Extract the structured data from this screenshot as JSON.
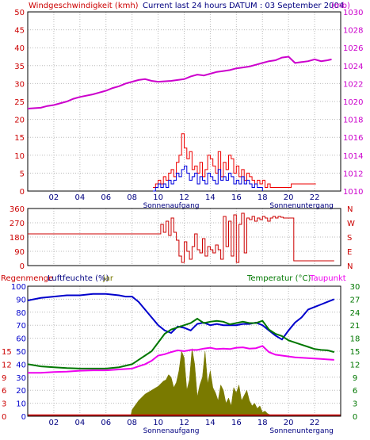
{
  "chart_data": [
    {
      "type": "line",
      "header": {
        "left_label": "Windgeschwindigkeit (kmh)",
        "center_label": "Current last 24 hours :",
        "date_label": "DATUM : 03 September 2004",
        "right_label": "(mb)"
      },
      "xlim": [
        0,
        24
      ],
      "x_ticks": [
        "02",
        "04",
        "06",
        "08",
        "10",
        "12",
        "14",
        "16",
        "18",
        "20",
        "22"
      ],
      "x_tick_values": [
        2,
        4,
        6,
        8,
        10,
        12,
        14,
        16,
        18,
        20,
        22
      ],
      "sun_labels": {
        "sunrise": "Sonnenaufgang",
        "sunset": "Sonnenuntergang",
        "sunrise_x": 11.0,
        "sunset_x": 21.0
      },
      "y_left": {
        "ticks": [
          0,
          5,
          10,
          15,
          20,
          25,
          30,
          35,
          40,
          45,
          50
        ],
        "lim": [
          0,
          50
        ],
        "color": "#cc0000"
      },
      "y_right": {
        "ticks": [
          1010,
          1012,
          1014,
          1016,
          1018,
          1020,
          1022,
          1024,
          1026,
          1028,
          1030
        ],
        "lim": [
          1010,
          1030
        ],
        "color": "#cc00cc"
      },
      "series": [
        {
          "role": "pressure",
          "color": "#cc00cc",
          "axis": "right",
          "x": [
            0,
            1,
            1.5,
            2,
            3,
            3.5,
            4,
            5,
            5.5,
            6,
            6.5,
            7,
            7.5,
            8,
            8.5,
            9,
            9.5,
            10,
            11,
            12,
            12.5,
            13,
            13.5,
            14,
            14.5,
            15,
            15.5,
            16,
            16.5,
            17,
            17.5,
            18,
            18.5,
            19,
            19.5,
            20,
            20.5,
            21,
            21.5,
            22,
            22.5,
            23,
            23.3
          ],
          "y": [
            1019.2,
            1019.3,
            1019.5,
            1019.6,
            1020.0,
            1020.3,
            1020.5,
            1020.8,
            1021.0,
            1021.2,
            1021.5,
            1021.7,
            1022.0,
            1022.2,
            1022.4,
            1022.5,
            1022.3,
            1022.2,
            1022.3,
            1022.5,
            1022.8,
            1023.0,
            1022.9,
            1023.1,
            1023.3,
            1023.4,
            1023.5,
            1023.7,
            1023.8,
            1023.9,
            1024.1,
            1024.3,
            1024.5,
            1024.6,
            1024.9,
            1025.0,
            1024.3,
            1024.4,
            1024.5,
            1024.7,
            1024.5,
            1024.6,
            1024.7
          ]
        },
        {
          "role": "wind_gust",
          "color": "#ee0000",
          "axis": "left",
          "x": [
            9.6,
            9.8,
            10.0,
            10.2,
            10.4,
            10.6,
            10.8,
            11.0,
            11.2,
            11.4,
            11.6,
            11.8,
            12.0,
            12.2,
            12.4,
            12.6,
            12.8,
            13.0,
            13.2,
            13.4,
            13.6,
            13.8,
            14.0,
            14.2,
            14.4,
            14.6,
            14.8,
            15.0,
            15.2,
            15.4,
            15.6,
            15.8,
            16.0,
            16.2,
            16.4,
            16.6,
            16.8,
            17.0,
            17.2,
            17.4,
            17.6,
            17.8,
            18.0,
            18.2,
            18.4,
            18.6,
            20.2,
            22.1
          ],
          "y": [
            1,
            2,
            3,
            2,
            4,
            3,
            5,
            6,
            4,
            8,
            10,
            16,
            12,
            9,
            11,
            6,
            7,
            5,
            8,
            4,
            6,
            10,
            9,
            7,
            5,
            11,
            4,
            8,
            6,
            10,
            9,
            5,
            7,
            4,
            6,
            3,
            5,
            4,
            3,
            2,
            3,
            2,
            3,
            1,
            2,
            1,
            2,
            2
          ]
        },
        {
          "role": "wind_mean",
          "color": "#0000dd",
          "axis": "left",
          "x": [
            9.6,
            9.8,
            10.0,
            10.2,
            10.4,
            10.6,
            10.8,
            11.0,
            11.2,
            11.4,
            11.6,
            11.8,
            12.0,
            12.2,
            12.4,
            12.6,
            12.8,
            13.0,
            13.2,
            13.4,
            13.6,
            13.8,
            14.0,
            14.2,
            14.4,
            14.6,
            14.8,
            15.0,
            15.2,
            15.4,
            15.6,
            15.8,
            16.0,
            16.2,
            16.4,
            16.6,
            16.8,
            17.0,
            17.2,
            17.4,
            17.6,
            17.8,
            18.0
          ],
          "y": [
            0,
            1,
            2,
            1,
            2,
            1,
            3,
            2,
            3,
            5,
            4,
            6,
            7,
            5,
            3,
            4,
            5,
            2,
            4,
            3,
            2,
            5,
            4,
            3,
            2,
            6,
            3,
            4,
            3,
            5,
            4,
            2,
            3,
            2,
            4,
            2,
            3,
            2,
            1,
            2,
            1,
            1,
            0
          ]
        }
      ]
    },
    {
      "type": "line",
      "xlim": [
        0,
        24
      ],
      "y_left": {
        "ticks": [
          0,
          90,
          180,
          270,
          360
        ],
        "lim": [
          0,
          360
        ]
      },
      "y_right_labels": [
        "N",
        "W",
        "S",
        "E",
        "N"
      ],
      "series": [
        {
          "role": "wind_direction",
          "color": "#cc0000",
          "x": [
            0,
            9.5,
            10.0,
            10.2,
            10.4,
            10.6,
            10.8,
            11.0,
            11.2,
            11.4,
            11.6,
            11.8,
            12.0,
            12.2,
            12.4,
            12.6,
            12.8,
            13.0,
            13.2,
            13.4,
            13.6,
            13.8,
            14.0,
            14.2,
            14.4,
            14.6,
            14.8,
            15.0,
            15.2,
            15.4,
            15.6,
            15.8,
            16.0,
            16.2,
            16.4,
            16.6,
            16.8,
            17.0,
            17.2,
            17.4,
            17.6,
            17.8,
            18.0,
            18.2,
            18.4,
            18.6,
            18.8,
            19.0,
            19.2,
            19.4,
            19.6,
            20.0,
            20.2,
            20.4,
            22.0,
            23.5
          ],
          "y": [
            200,
            200,
            200,
            260,
            210,
            280,
            190,
            300,
            210,
            160,
            60,
            20,
            150,
            90,
            40,
            120,
            200,
            100,
            80,
            170,
            60,
            120,
            100,
            80,
            130,
            100,
            40,
            310,
            120,
            280,
            60,
            320,
            20,
            260,
            330,
            80,
            300,
            290,
            310,
            280,
            300,
            290,
            310,
            300,
            280,
            300,
            310,
            300,
            310,
            305,
            300,
            300,
            300,
            30,
            30,
            30
          ]
        }
      ]
    },
    {
      "type": "line",
      "header": {
        "rain_label": "Regenmenge",
        "humidity_label": "Luftfeuchte (%)",
        "jar_label": "jar",
        "temperature_label": "Temperatur (°C)",
        "dewpoint_label": "Taupunkt"
      },
      "xlim": [
        0,
        24
      ],
      "y_left_humidity": {
        "ticks": [
          0,
          10,
          20,
          30,
          40,
          50,
          60,
          70,
          80,
          90,
          100
        ],
        "lim": [
          0,
          100
        ]
      },
      "y_left_rain": {
        "ticks": [
          0,
          3,
          6,
          9,
          12,
          15
        ],
        "values_at": [
          0,
          10,
          20,
          30,
          40,
          50
        ]
      },
      "y_right": {
        "ticks": [
          0,
          3,
          6,
          9,
          12,
          15,
          18,
          21,
          24,
          27,
          30
        ],
        "lim": [
          0,
          30
        ]
      },
      "series": [
        {
          "role": "humidity",
          "color": "#0000cc",
          "axis": "left",
          "x": [
            0,
            1,
            2,
            3,
            4,
            5,
            6,
            7,
            7.5,
            8,
            8.5,
            9,
            9.5,
            10,
            10.5,
            11,
            11.5,
            12,
            12.5,
            13,
            13.5,
            14,
            14.5,
            15,
            15.5,
            16,
            16.5,
            17,
            17.5,
            18,
            18.5,
            19,
            19.5,
            20,
            20.5,
            21,
            21.5,
            22,
            22.5,
            23,
            23.5
          ],
          "y": [
            89,
            91,
            92,
            93,
            93,
            94,
            94,
            93,
            92,
            92,
            88,
            82,
            76,
            70,
            66,
            64,
            69,
            68,
            66,
            71,
            72,
            70,
            71,
            70,
            70,
            70,
            71,
            71,
            72,
            70,
            66,
            62,
            59,
            66,
            72,
            76,
            82,
            84,
            86,
            88,
            90
          ]
        },
        {
          "role": "temperature",
          "color": "#007700",
          "axis": "right",
          "x": [
            0,
            1,
            2,
            3,
            4,
            5,
            6,
            7,
            8,
            8.5,
            9,
            9.5,
            10,
            10.5,
            11,
            11.5,
            12,
            12.5,
            13,
            13.5,
            14,
            14.5,
            15,
            15.5,
            16,
            16.5,
            17,
            17.5,
            18,
            18.5,
            19,
            19.5,
            20,
            20.5,
            21,
            21.5,
            22,
            22.5,
            23,
            23.5
          ],
          "y": [
            12,
            11.5,
            11.3,
            11.1,
            11.0,
            11.0,
            11.0,
            11.3,
            12,
            13,
            14,
            15,
            17,
            19,
            20,
            20.5,
            21,
            21.5,
            22.5,
            21.5,
            21.8,
            22,
            21.8,
            21.2,
            21.5,
            21.8,
            21.5,
            21.5,
            22,
            20,
            19,
            18.5,
            17.5,
            17,
            16.5,
            16,
            15.5,
            15.3,
            15.2,
            14.8
          ]
        },
        {
          "role": "dewpoint",
          "color": "#ee00ee",
          "axis": "right",
          "x": [
            0,
            1,
            2,
            3,
            4,
            5,
            6,
            7,
            8,
            8.5,
            9,
            9.5,
            10,
            10.5,
            11,
            11.5,
            12,
            12.5,
            13,
            13.5,
            14,
            14.5,
            15,
            15.5,
            16,
            16.5,
            17,
            17.5,
            18,
            18.5,
            19,
            19.5,
            20,
            20.5,
            21,
            21.5,
            22,
            22.5,
            23,
            23.5
          ],
          "y": [
            10,
            10,
            10.2,
            10.3,
            10.5,
            10.6,
            10.6,
            10.8,
            11,
            11.5,
            12,
            12.8,
            14,
            14.3,
            14.8,
            15.2,
            15.0,
            15.3,
            15.3,
            15.6,
            15.8,
            15.5,
            15.6,
            15.5,
            15.8,
            15.9,
            15.6,
            15.7,
            16.2,
            14.8,
            14.2,
            14.0,
            13.8,
            13.6,
            13.5,
            13.4,
            13.3,
            13.2,
            13.1,
            13.0
          ]
        },
        {
          "role": "radiation",
          "color": "#7a7a00",
          "axis": "left",
          "x": [
            7.9,
            8.0,
            8.5,
            9.0,
            9.5,
            10.0,
            10.2,
            10.4,
            10.6,
            10.8,
            11.0,
            11.2,
            11.4,
            11.6,
            11.8,
            12.0,
            12.2,
            12.4,
            12.6,
            12.8,
            13.0,
            13.2,
            13.4,
            13.6,
            13.8,
            14.0,
            14.2,
            14.4,
            14.6,
            14.8,
            15.0,
            15.2,
            15.4,
            15.6,
            15.8,
            16.0,
            16.2,
            16.4,
            16.6,
            16.8,
            17.0,
            17.2,
            17.4,
            17.6,
            17.8,
            18.0,
            18.2,
            18.4,
            18.6,
            19.0
          ],
          "y": [
            0,
            5,
            12,
            17,
            20,
            23,
            25,
            27,
            28,
            32,
            30,
            22,
            26,
            35,
            50,
            45,
            20,
            28,
            52,
            40,
            15,
            24,
            30,
            50,
            25,
            35,
            22,
            18,
            12,
            24,
            20,
            10,
            14,
            8,
            22,
            18,
            24,
            12,
            16,
            20,
            12,
            8,
            10,
            6,
            8,
            3,
            4,
            2,
            1,
            0
          ]
        },
        {
          "role": "rain",
          "color": "#cc0000",
          "axis": "left",
          "x": [
            0,
            7.9,
            17.5,
            24
          ],
          "y": [
            0.6,
            0.6,
            0.6,
            0.6
          ]
        }
      ]
    }
  ]
}
